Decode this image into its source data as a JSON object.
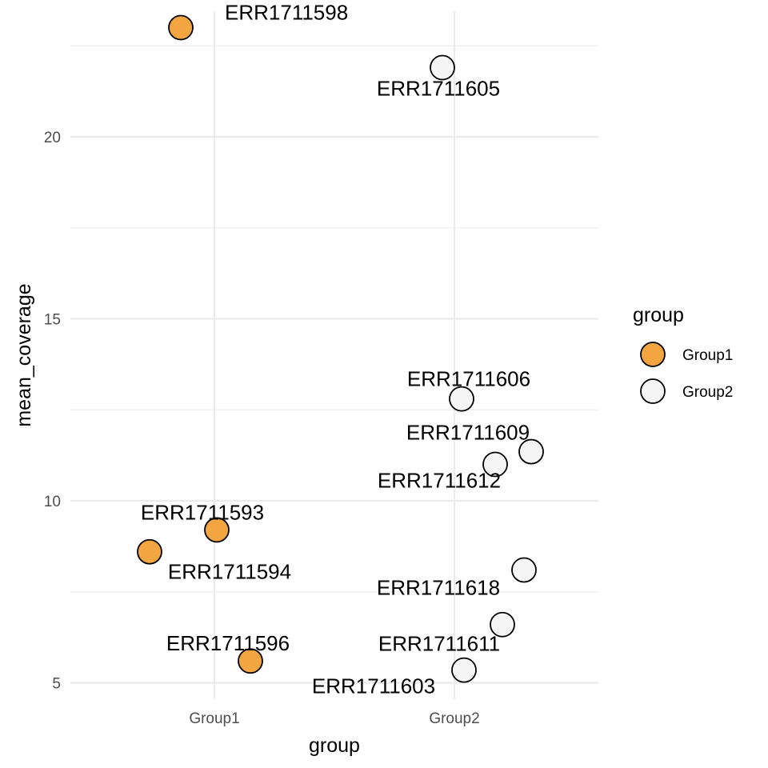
{
  "chart_data": {
    "type": "scatter",
    "xlabel": "group",
    "ylabel": "mean_coverage",
    "categories": [
      "Group1",
      "Group2"
    ],
    "ylim": [
      4.55,
      23.45
    ],
    "yticks": [
      5,
      10,
      15,
      20
    ],
    "grid": true,
    "legend": {
      "title": "group",
      "position": "right",
      "entries": [
        {
          "label": "Group1",
          "color": "#f2a541"
        },
        {
          "label": "Group2",
          "color": "#f5f5f5"
        }
      ]
    },
    "series": [
      {
        "name": "Group1",
        "color": "#f2a541",
        "points": [
          {
            "label": "ERR1711598",
            "category": "Group1",
            "jitter": -0.14,
            "y": 23.0
          },
          {
            "label": "ERR1711593",
            "category": "Group1",
            "jitter": 0.01,
            "y": 9.2
          },
          {
            "label": "ERR1711594",
            "category": "Group1",
            "jitter": -0.27,
            "y": 8.6
          },
          {
            "label": "ERR1711596",
            "category": "Group1",
            "jitter": 0.15,
            "y": 5.6
          }
        ]
      },
      {
        "name": "Group2",
        "color": "#f5f5f5",
        "points": [
          {
            "label": "ERR1711605",
            "category": "Group2",
            "jitter": -0.05,
            "y": 21.9
          },
          {
            "label": "ERR1711606",
            "category": "Group2",
            "jitter": 0.03,
            "y": 12.8
          },
          {
            "label": "ERR1711609",
            "category": "Group2",
            "jitter": 0.32,
            "y": 11.35
          },
          {
            "label": "ERR1711612",
            "category": "Group2",
            "jitter": 0.17,
            "y": 11.0
          },
          {
            "label": "ERR1711618",
            "category": "Group2",
            "jitter": 0.29,
            "y": 8.1
          },
          {
            "label": "ERR1711611",
            "category": "Group2",
            "jitter": 0.2,
            "y": 6.6
          },
          {
            "label": "ERR1711603",
            "category": "Group2",
            "jitter": 0.04,
            "y": 5.35
          }
        ]
      }
    ]
  }
}
